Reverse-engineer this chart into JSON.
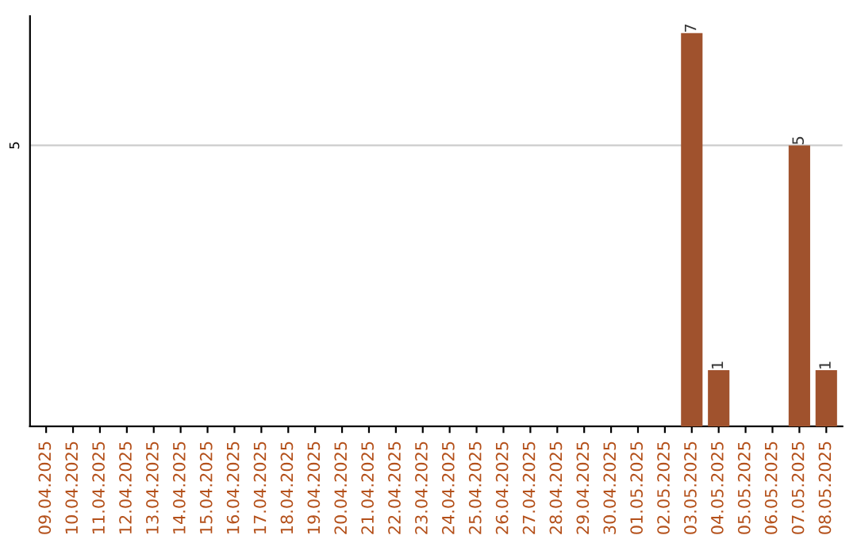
{
  "chart_data": {
    "type": "bar",
    "categories": [
      "09.04.2025",
      "10.04.2025",
      "11.04.2025",
      "12.04.2025",
      "13.04.2025",
      "14.04.2025",
      "15.04.2025",
      "16.04.2025",
      "17.04.2025",
      "18.04.2025",
      "19.04.2025",
      "20.04.2025",
      "21.04.2025",
      "22.04.2025",
      "23.04.2025",
      "24.04.2025",
      "25.04.2025",
      "26.04.2025",
      "27.04.2025",
      "28.04.2025",
      "29.04.2025",
      "30.04.2025",
      "01.05.2025",
      "02.05.2025",
      "03.05.2025",
      "04.05.2025",
      "05.05.2025",
      "06.05.2025",
      "07.05.2025",
      "08.05.2025"
    ],
    "values": [
      null,
      null,
      null,
      null,
      null,
      null,
      null,
      null,
      null,
      null,
      null,
      null,
      null,
      null,
      null,
      null,
      null,
      null,
      null,
      null,
      null,
      null,
      null,
      null,
      7,
      1,
      null,
      null,
      5,
      1
    ],
    "value_labels": [
      null,
      null,
      null,
      null,
      null,
      null,
      null,
      null,
      null,
      null,
      null,
      null,
      null,
      null,
      null,
      null,
      null,
      null,
      null,
      null,
      null,
      null,
      null,
      null,
      "7",
      "1",
      null,
      null,
      "5",
      "1"
    ],
    "color": "#a0522d",
    "ylim": [
      0,
      7.3
    ],
    "ref_lines": [
      {
        "axis": "y",
        "value": 5,
        "label": "5",
        "color": "#cccccc"
      }
    ]
  }
}
